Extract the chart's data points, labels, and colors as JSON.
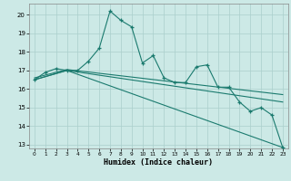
{
  "xlabel": "Humidex (Indice chaleur)",
  "xlim": [
    -0.5,
    23.5
  ],
  "ylim": [
    12.8,
    20.6
  ],
  "yticks": [
    13,
    14,
    15,
    16,
    17,
    18,
    19,
    20
  ],
  "xticks": [
    0,
    1,
    2,
    3,
    4,
    5,
    6,
    7,
    8,
    9,
    10,
    11,
    12,
    13,
    14,
    15,
    16,
    17,
    18,
    19,
    20,
    21,
    22,
    23
  ],
  "bg_color": "#cce9e6",
  "grid_color": "#aacfcc",
  "line_color": "#1a7a6e",
  "line1_x": [
    0,
    1,
    2,
    3,
    4,
    5,
    6,
    7,
    8,
    9,
    10,
    11,
    12,
    13,
    14,
    15,
    16,
    17,
    18,
    19,
    20,
    21,
    22,
    23
  ],
  "line1_y": [
    16.5,
    16.9,
    17.1,
    17.0,
    17.0,
    17.5,
    18.2,
    20.2,
    19.7,
    19.35,
    17.4,
    17.8,
    16.6,
    16.35,
    16.35,
    17.2,
    17.3,
    16.1,
    16.1,
    15.3,
    14.8,
    15.0,
    14.6,
    12.85
  ],
  "line2_x": [
    0,
    3,
    23
  ],
  "line2_y": [
    16.5,
    17.0,
    12.85
  ],
  "line3_x": [
    0,
    3,
    23
  ],
  "line3_y": [
    16.5,
    17.0,
    15.3
  ],
  "line4_x": [
    0,
    3,
    23
  ],
  "line4_y": [
    16.6,
    17.05,
    15.7
  ]
}
